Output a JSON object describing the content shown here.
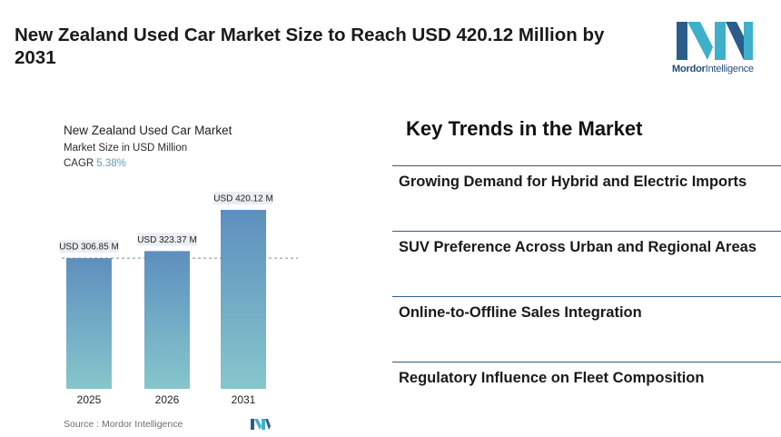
{
  "headline": "New Zealand Used Car Market Size to Reach USD 420.12 Million by 2031",
  "logo": {
    "brand_bold": "Mordor",
    "brand_rest": "Intelligence",
    "icon": "mordor-intelligence-logo-icon"
  },
  "chart_header": {
    "title": "New Zealand Used Car Market",
    "subtitle": "Market Size in USD Million",
    "cagr_label": "CAGR",
    "cagr_value": "5.38%"
  },
  "chart_data": {
    "type": "bar",
    "categories": [
      "2025",
      "2026",
      "2031"
    ],
    "values": [
      306.85,
      323.37,
      420.12
    ],
    "data_labels": [
      "USD 306.85 M",
      "USD 323.37 M",
      "USD 420.12 M"
    ],
    "reference_line": 306.85,
    "ylim": [
      0,
      420.12
    ],
    "grid": false,
    "bar_gradient": [
      "#5d8fbe",
      "#86c6cc"
    ]
  },
  "source": "Source :  Mordor Intelligence",
  "trends": {
    "title": "Key Trends in the Market",
    "items": [
      "Growing Demand for Hybrid and Electric Imports",
      "SUV Preference Across Urban and Regional Areas",
      "Online-to-Offline Sales Integration",
      "Regulatory Influence on Fleet Composition"
    ]
  }
}
